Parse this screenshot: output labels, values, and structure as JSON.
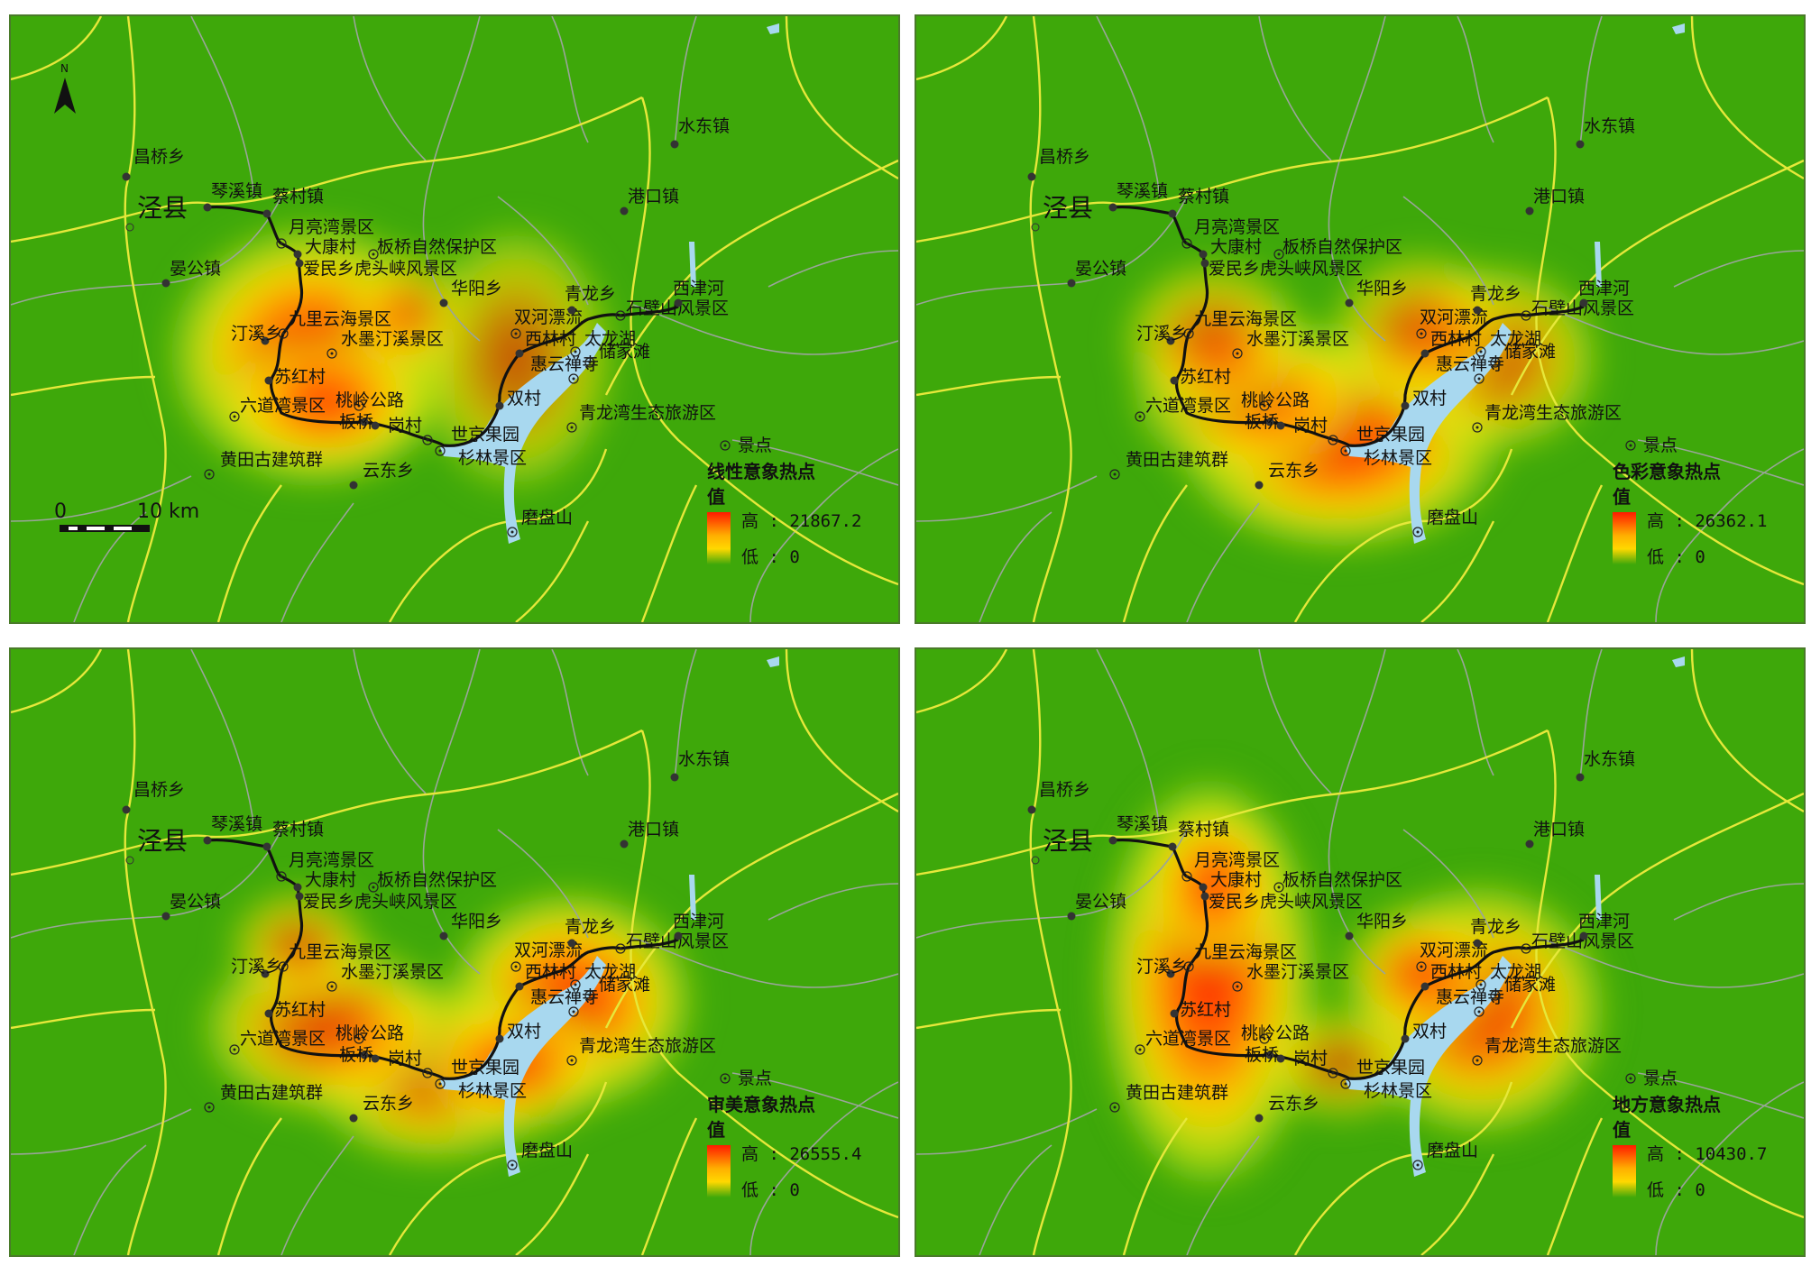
{
  "colors": {
    "background": "#3ea80a",
    "hot": "#ff1a00",
    "mid": "#ffd800",
    "low": "#d4f21a",
    "road_yellow": "#e6e83a",
    "road_grey": "#9aa59a",
    "water": "#a8d8ef"
  },
  "places": {
    "changqiao": "昌桥乡",
    "jingxian": "泾县",
    "qinxi": "琴溪镇",
    "caicun": "蔡村镇",
    "yanggong": "晏公镇",
    "yueliangwan": "月亮湾景区",
    "dakang": "大康村",
    "banqiao": "板桥自然保护区",
    "aimin": "爱民乡虎头峡风景区",
    "huayang": "华阳乡",
    "jiuli": "九里云海景区",
    "tingxi": "汀溪乡",
    "shuimo": "水墨汀溪景区",
    "suhong": "苏红村",
    "liudao": "六道湾景区",
    "taoling": "桃岭公路",
    "banqiao2": "板桥",
    "xx_cun": "岗村",
    "huangtian": "黄田古建筑群",
    "yundong": "云东乡",
    "shijing": "世京果园",
    "shanlin": "杉林景区",
    "mopan": "磨盘山",
    "shuangcun": "双村",
    "shuanghe": "双河漂流",
    "xilin": "西林村",
    "taohu": "太龙湖",
    "huiyun": "惠云禅寺",
    "chujia": "储家滩",
    "qinglongxiang": "青龙乡",
    "shibi": "石壁山风景区",
    "xijinhe": "西津河",
    "qinglongwan": "青龙湾生态旅游区",
    "gangkou": "港口镇",
    "shuidong": "水东镇"
  },
  "scale_bar": {
    "zero": "0",
    "ten": "10 km"
  },
  "north": "N",
  "legend": {
    "spot": "景点",
    "value_label": "值",
    "high": "高",
    "low": "低",
    "colon": ":"
  },
  "maps": [
    {
      "title": "线性意象热点",
      "high_value": "21867.2",
      "low_value": "0"
    },
    {
      "title": "色彩意象热点",
      "high_value": "26362.1",
      "low_value": "0"
    },
    {
      "title": "审美意象热点",
      "high_value": "26555.4",
      "low_value": "0"
    },
    {
      "title": "地方意象热点",
      "high_value": "10430.7",
      "low_value": "0"
    }
  ]
}
